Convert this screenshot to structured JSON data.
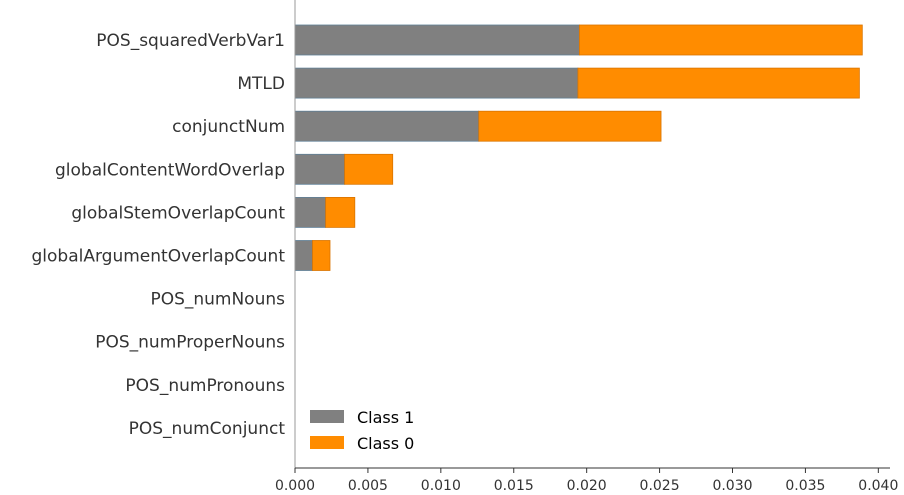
{
  "chart_data": {
    "type": "bar",
    "orientation": "horizontal",
    "stacked": true,
    "title": "",
    "xlabel": "",
    "ylabel": "",
    "categories": [
      "POS_squaredVerbVar1",
      "MTLD",
      "conjunctNum",
      "globalContentWordOverlap",
      "globalStemOverlapCount",
      "globalArgumentOverlapCount",
      "POS_numNouns",
      "POS_numProperNouns",
      "POS_numPronouns",
      "POS_numConjunct"
    ],
    "series": [
      {
        "name": "Class 1",
        "color": "#808080",
        "values": [
          0.0195,
          0.0194,
          0.0126,
          0.0034,
          0.0021,
          0.0012,
          0,
          0,
          0,
          0
        ]
      },
      {
        "name": "Class 0",
        "color": "#ff8c00",
        "values": [
          0.0194,
          0.0193,
          0.0125,
          0.0033,
          0.002,
          0.0012,
          0,
          0,
          0,
          0
        ]
      }
    ],
    "xlim": [
      0.0,
      0.0408
    ],
    "xticks": [
      "0.000",
      "0.005",
      "0.010",
      "0.015",
      "0.020",
      "0.025",
      "0.030",
      "0.035",
      "0.040"
    ],
    "legend_position": "lower-left",
    "grid": false
  }
}
